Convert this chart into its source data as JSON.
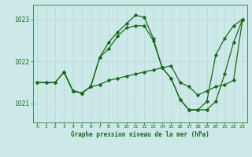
{
  "title": "Graphe pression niveau de la mer (hPa)",
  "background_color": "#cde8e8",
  "line_color": "#1a6b1a",
  "xlim": [
    -0.5,
    23.5
  ],
  "ylim": [
    1020.55,
    1023.35
  ],
  "yticks": [
    1021,
    1022,
    1023
  ],
  "xticks": [
    0,
    1,
    2,
    3,
    4,
    5,
    6,
    7,
    8,
    9,
    10,
    11,
    12,
    13,
    14,
    15,
    16,
    17,
    18,
    19,
    20,
    21,
    22,
    23
  ],
  "series1_x": [
    0,
    1,
    2,
    3,
    4,
    5,
    6,
    7,
    8,
    9,
    10,
    11,
    12,
    13,
    14,
    15,
    16,
    17,
    18,
    19,
    20,
    21,
    22,
    23
  ],
  "series1_y": [
    1021.5,
    1021.5,
    1021.5,
    1021.75,
    1021.3,
    1021.25,
    1021.4,
    1021.45,
    1021.55,
    1021.6,
    1021.65,
    1021.7,
    1021.75,
    1021.8,
    1021.85,
    1021.9,
    1021.5,
    1021.4,
    1021.2,
    1021.3,
    1021.4,
    1021.45,
    1021.55,
    1023.0
  ],
  "series2_x": [
    0,
    1,
    2,
    3,
    4,
    5,
    6,
    7,
    8,
    9,
    10,
    11,
    12,
    13,
    14,
    15,
    16,
    17,
    18,
    19,
    20,
    21,
    22,
    23
  ],
  "series2_y": [
    1021.5,
    1021.5,
    1021.5,
    1021.75,
    1021.3,
    1021.25,
    1021.4,
    1022.1,
    1022.3,
    1022.6,
    1022.8,
    1022.85,
    1022.85,
    1022.5,
    1021.85,
    1021.6,
    1021.1,
    1020.85,
    1020.85,
    1021.05,
    1022.15,
    1022.55,
    1022.85,
    1023.0
  ],
  "series3_x": [
    3,
    4,
    5,
    6,
    7,
    8,
    9,
    10,
    11,
    12,
    13,
    14,
    15,
    16,
    17,
    18,
    19,
    20,
    21,
    22,
    23
  ],
  "series3_y": [
    1021.75,
    1021.3,
    1021.25,
    1021.4,
    1022.1,
    1022.45,
    1022.7,
    1022.9,
    1023.1,
    1023.05,
    1022.55,
    1021.85,
    1021.6,
    1021.1,
    1020.85,
    1020.85,
    1020.85,
    1021.05,
    1021.7,
    1022.45,
    1023.0
  ],
  "figsize": [
    3.2,
    2.0
  ],
  "dpi": 100
}
